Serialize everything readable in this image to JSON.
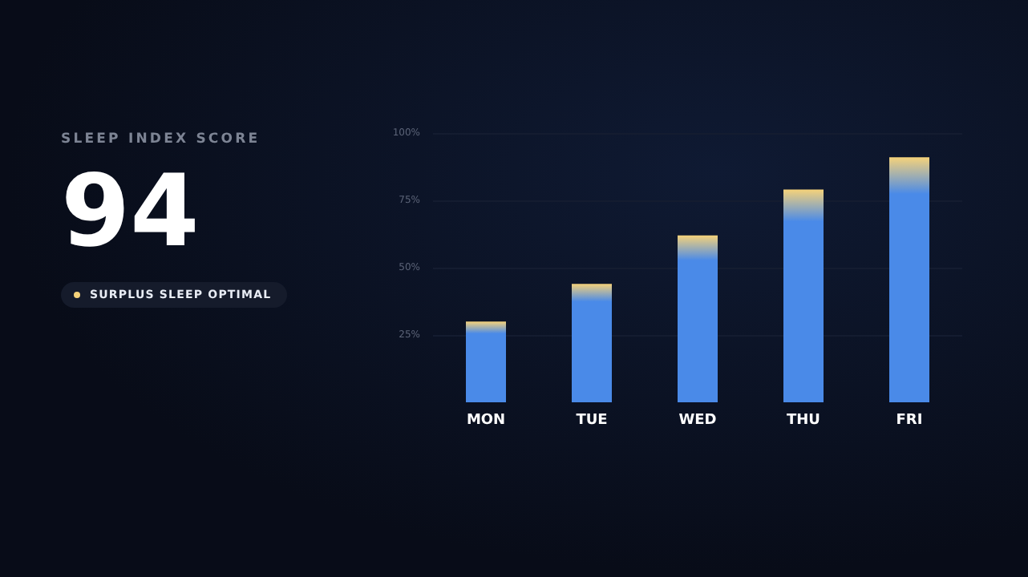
{
  "chart_data": {
    "type": "bar",
    "title": "SLEEP INDEX SCORE",
    "subtitle": "94",
    "annotations": [
      "SURPLUS SLEEP OPTIMAL"
    ],
    "categories": [
      "MON",
      "TUE",
      "WED",
      "THU",
      "FRI"
    ],
    "values": [
      30,
      44,
      62,
      79,
      91
    ],
    "color": "#4a8ae8",
    "ylim": [
      0,
      100
    ],
    "yticks": [
      {
        "value": 25,
        "label": "25%"
      },
      {
        "value": 50,
        "label": "50%"
      },
      {
        "value": 75,
        "label": "75%"
      },
      {
        "value": 100,
        "label": "100%"
      }
    ],
    "grid": "y"
  }
}
